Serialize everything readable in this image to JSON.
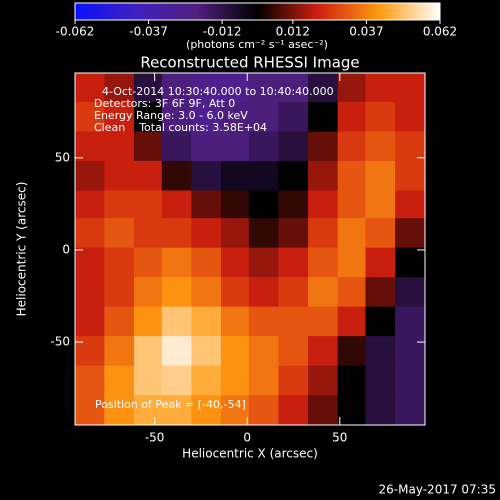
{
  "chart_data": {
    "type": "heatmap",
    "title": "Reconstructed RHESSI Image",
    "xlabel": "Heliocentric X (arcsec)",
    "ylabel": "Heliocentric Y (arcsec)",
    "colorbar_label": "(photons cm⁻² s⁻¹ asec⁻²)",
    "zlim": [
      -0.062,
      0.062
    ],
    "zticks": [
      -0.062,
      -0.037,
      -0.012,
      0.012,
      0.037,
      0.062
    ],
    "colors": [
      "#0a10ff",
      "#4020c0",
      "#502080",
      "#000000",
      "#d02010",
      "#ff9a10",
      "#ffffff"
    ],
    "xlim": [
      -93,
      96
    ],
    "ylim": [
      -95,
      96
    ],
    "xticks": [
      -50,
      0,
      50
    ],
    "yticks": [
      -50,
      0,
      50
    ],
    "annotations": [
      "4-Oct-2014 10:30:40.000 to 10:40:40.000",
      "Detectors: 3F 6F 9F, Att 0",
      "Energy Range: 3.0 - 6.0 keV",
      "Clean    Total counts: 3.58E+04",
      "Position of Peak = [-40,-54]"
    ],
    "footer": "26-May-2017 07:35",
    "x": [
      -85,
      -69,
      -53,
      -38,
      -22,
      -6,
      9,
      25,
      41,
      57,
      72,
      88
    ],
    "y": [
      88,
      72,
      56,
      40,
      24,
      9,
      -7,
      -23,
      -39,
      -55,
      -71,
      -87
    ],
    "z": [
      [
        0.02,
        0.015,
        -0.01,
        -0.02,
        -0.025,
        -0.025,
        -0.02,
        -0.02,
        -0.01,
        0.015,
        0.02,
        0.02
      ],
      [
        0.025,
        0.02,
        0.0,
        -0.02,
        -0.025,
        -0.02,
        -0.02,
        -0.015,
        0.0,
        0.02,
        0.025,
        0.02
      ],
      [
        0.02,
        0.02,
        0.01,
        -0.015,
        -0.02,
        -0.02,
        -0.015,
        -0.01,
        0.01,
        0.025,
        0.03,
        0.025
      ],
      [
        0.015,
        0.02,
        0.02,
        0.005,
        -0.01,
        -0.005,
        -0.005,
        0.0,
        0.015,
        0.03,
        0.035,
        0.025
      ],
      [
        0.02,
        0.025,
        0.025,
        0.02,
        0.01,
        0.005,
        0.0,
        0.005,
        0.02,
        0.03,
        0.035,
        0.02
      ],
      [
        0.025,
        0.03,
        0.025,
        0.025,
        0.02,
        0.015,
        0.005,
        0.01,
        0.025,
        0.035,
        0.03,
        0.01
      ],
      [
        0.02,
        0.025,
        0.03,
        0.035,
        0.03,
        0.02,
        0.015,
        0.02,
        0.03,
        0.035,
        0.02,
        0.0
      ],
      [
        0.02,
        0.025,
        0.035,
        0.04,
        0.035,
        0.025,
        0.02,
        0.025,
        0.035,
        0.03,
        0.01,
        -0.01
      ],
      [
        0.02,
        0.03,
        0.04,
        0.05,
        0.045,
        0.035,
        0.03,
        0.03,
        0.03,
        0.02,
        0.0,
        -0.015
      ],
      [
        0.025,
        0.035,
        0.05,
        0.058,
        0.05,
        0.04,
        0.035,
        0.03,
        0.02,
        0.005,
        -0.01,
        -0.015
      ],
      [
        0.03,
        0.04,
        0.05,
        0.052,
        0.045,
        0.04,
        0.035,
        0.025,
        0.015,
        0.0,
        -0.01,
        -0.015
      ],
      [
        0.03,
        0.04,
        0.045,
        0.045,
        0.04,
        0.035,
        0.03,
        0.02,
        0.01,
        0.0,
        -0.01,
        -0.015
      ]
    ]
  }
}
